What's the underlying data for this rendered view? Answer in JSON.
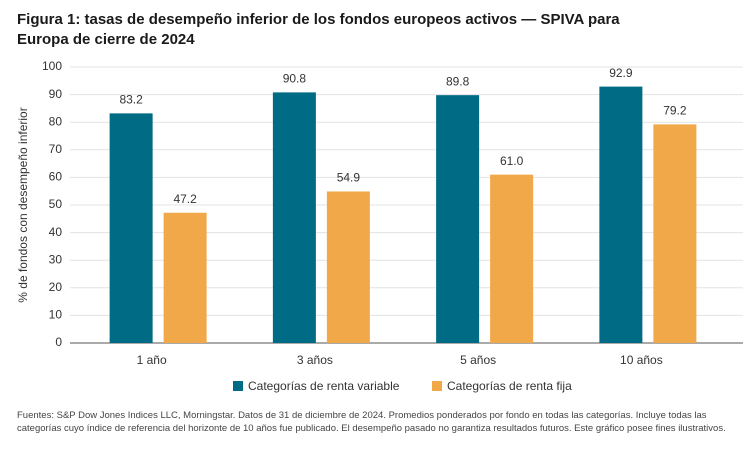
{
  "chart_data": {
    "type": "bar",
    "title": "Figura 1: tasas de desempeño inferior de los fondos europeos activos — SPIVA para Europa de cierre de 2024",
    "y_label": "% de fondos con desempeño inferior",
    "categories": [
      "1 año",
      "3 años",
      "5 años",
      "10 años"
    ],
    "series": [
      {
        "name": "Categorías de renta variable",
        "color": "#006b85",
        "values": [
          83.2,
          90.8,
          89.8,
          92.9
        ],
        "value_labels": [
          "83.2",
          "90.8",
          "89.8",
          "92.9"
        ]
      },
      {
        "name": "Categorías de renta fija",
        "color": "#f0a848",
        "values": [
          47.2,
          54.9,
          61.0,
          79.2
        ],
        "value_labels": [
          "47.2",
          "54.9",
          "61.0",
          "79.2"
        ]
      }
    ],
    "ylim": [
      0,
      100
    ],
    "yticks": [
      0,
      10,
      20,
      30,
      40,
      50,
      60,
      70,
      80,
      90,
      100
    ],
    "grid": true,
    "legend": "bottom",
    "note": "Fuentes: S&P Dow Jones Indices LLC, Morningstar. Datos de 31 de diciembre de 2024. Promedios ponderados por fondo en todas las categorías. Incluye todas las categorías cuyo índice de referencia del horizonte de 10 años fue publicado. El desempeño pasado no garantiza resultados futuros. Este gráfico posee fines ilustrativos."
  }
}
